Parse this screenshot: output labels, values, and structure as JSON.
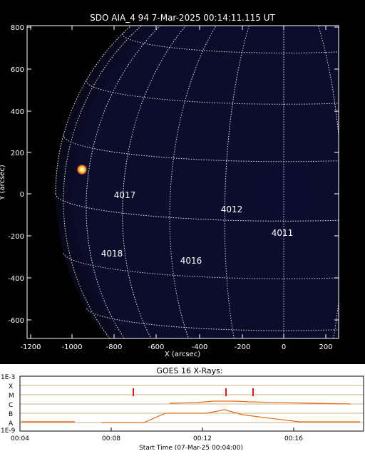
{
  "image": {
    "title": "SDO AIA_4 94  7-Mar-2025 00:14:11.115 UT",
    "x_label": "X (arcsec)",
    "y_label": "Y (arcsec)",
    "x_ticks": [
      "-1200",
      "-1000",
      "-800",
      "-600",
      "-400",
      "-200",
      "0",
      "200"
    ],
    "y_ticks": [
      "800",
      "600",
      "400",
      "200",
      "0",
      "-200",
      "-400",
      "-600"
    ],
    "regions": [
      {
        "label": "4017"
      },
      {
        "label": "4012"
      },
      {
        "label": "4011"
      },
      {
        "label": "4018"
      },
      {
        "label": "4016"
      }
    ]
  },
  "goes": {
    "title": "GOES 16 X-Rays:",
    "y_top_label": "1E-3",
    "y_bottom_label": "1E-9",
    "classes": [
      "X",
      "M",
      "C",
      "B",
      "A"
    ],
    "time_ticks": [
      "00:04",
      "00:08",
      "00:12",
      "00:16"
    ],
    "x_axis_label": "Start Time (07-Mar-25 00:04:00)"
  },
  "colors": {
    "disk": "#0a0a28",
    "grid": "#ffffff",
    "goes_line": "#e06a1a",
    "flare_marker": "#e0281a",
    "class_grid": "#8a6a3a"
  }
}
